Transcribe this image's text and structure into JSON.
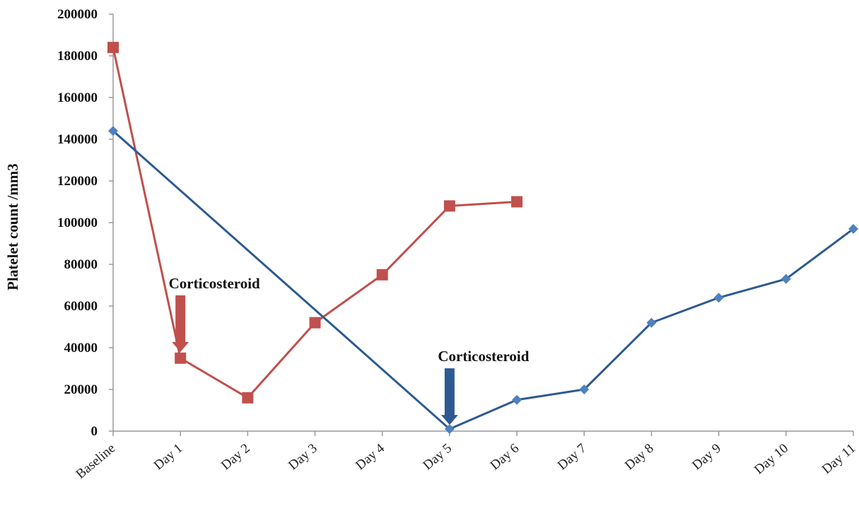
{
  "chart_data": {
    "type": "line",
    "categories": [
      "Baseline",
      "Day 1",
      "Day 2",
      "Day 3",
      "Day 4",
      "Day 5",
      "Day 6",
      "Day 7",
      "Day 8",
      "Day 9",
      "Day 10",
      "Day 11"
    ],
    "series": [
      {
        "color": "#c0504d",
        "marker": "square",
        "points": [
          {
            "x": "Baseline",
            "y": 184000
          },
          {
            "x": "Day 1",
            "y": 35000
          },
          {
            "x": "Day 2",
            "y": 16000
          },
          {
            "x": "Day 3",
            "y": 52000
          },
          {
            "x": "Day 4",
            "y": 75000
          },
          {
            "x": "Day 5",
            "y": 108000
          },
          {
            "x": "Day 6",
            "y": 110000
          }
        ]
      },
      {
        "color": "#2e5a92",
        "marker_color": "#4f81bd",
        "marker": "diamond",
        "points": [
          {
            "x": "Baseline",
            "y": 144000
          },
          {
            "x": "Day 5",
            "y": 1000
          },
          {
            "x": "Day 6",
            "y": 15000
          },
          {
            "x": "Day 7",
            "y": 20000
          },
          {
            "x": "Day 8",
            "y": 52000
          },
          {
            "x": "Day 9",
            "y": 64000
          },
          {
            "x": "Day 10",
            "y": 73000
          },
          {
            "x": "Day 11",
            "y": 97000
          }
        ]
      }
    ],
    "title": "",
    "xlabel": "",
    "ylabel": "Platelet count  /mm3",
    "ylim": [
      0,
      200000
    ],
    "yticks": [
      "0",
      "20000",
      "40000",
      "60000",
      "80000",
      "100000",
      "120000",
      "140000",
      "160000",
      "180000",
      "200000"
    ],
    "grid": false,
    "legend": "none",
    "annotations": [
      {
        "text": "Corticosteroid",
        "x": "Day 1",
        "arrow_color": "#c0504d",
        "arrow_tip_y": 38000
      },
      {
        "text": "Corticosteroid",
        "x": "Day 5",
        "arrow_color": "#2e5a92",
        "arrow_tip_y": 3000
      }
    ]
  }
}
